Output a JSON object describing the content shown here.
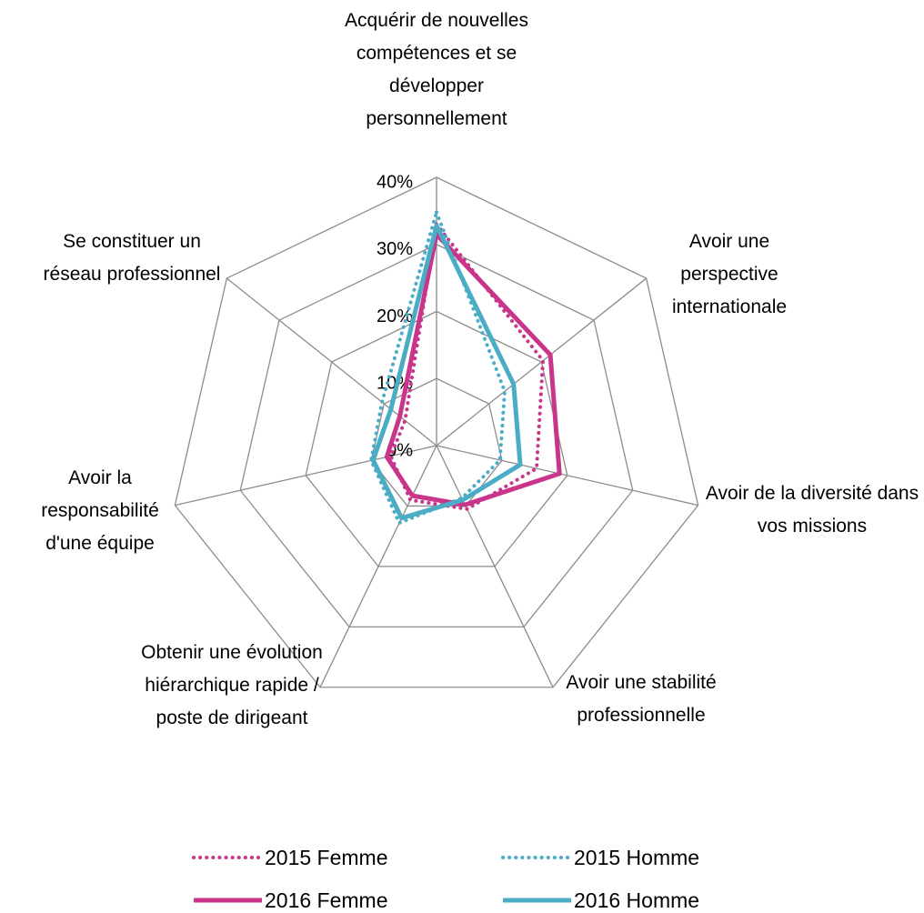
{
  "chart_data": {
    "type": "radar",
    "categories": [
      "Acquérir de nouvelles compétences et se développer personnellement",
      "Avoir une perspective internationale",
      "Avoir de la diversité dans vos missions",
      "Avoir une stabilité professionnelle",
      "Obtenir une évolution hiérarchique rapide / poste de dirigeant",
      "Avoir la responsabilité d'une équipe",
      "Se constituer un réseau professionnel"
    ],
    "series": [
      {
        "name": "2015 Femme",
        "color": "#c9358a",
        "dashed": true,
        "values": [
          33,
          20.3,
          15.3,
          10.5,
          9,
          7,
          6
        ]
      },
      {
        "name": "2015 Homme",
        "color": "#4bacc6",
        "dashed": true,
        "values": [
          34.8,
          13,
          9.7,
          8.7,
          12.8,
          10,
          10.4
        ]
      },
      {
        "name": "2016 Femme",
        "color": "#c9358a",
        "dashed": false,
        "values": [
          31.5,
          21.7,
          18.8,
          9.8,
          8.3,
          7.6,
          7
        ]
      },
      {
        "name": "2016 Homme",
        "color": "#4bacc6",
        "dashed": false,
        "values": [
          32.8,
          14.7,
          12.8,
          9,
          12,
          9.7,
          8.7
        ]
      }
    ],
    "ylim": [
      0,
      40
    ],
    "yticks": [
      {
        "value": 0,
        "label": "0%"
      },
      {
        "value": 10,
        "label": "10%"
      },
      {
        "value": 20,
        "label": "20%"
      },
      {
        "value": 30,
        "label": "30%"
      },
      {
        "value": 40,
        "label": "40%"
      }
    ],
    "grid": true
  }
}
